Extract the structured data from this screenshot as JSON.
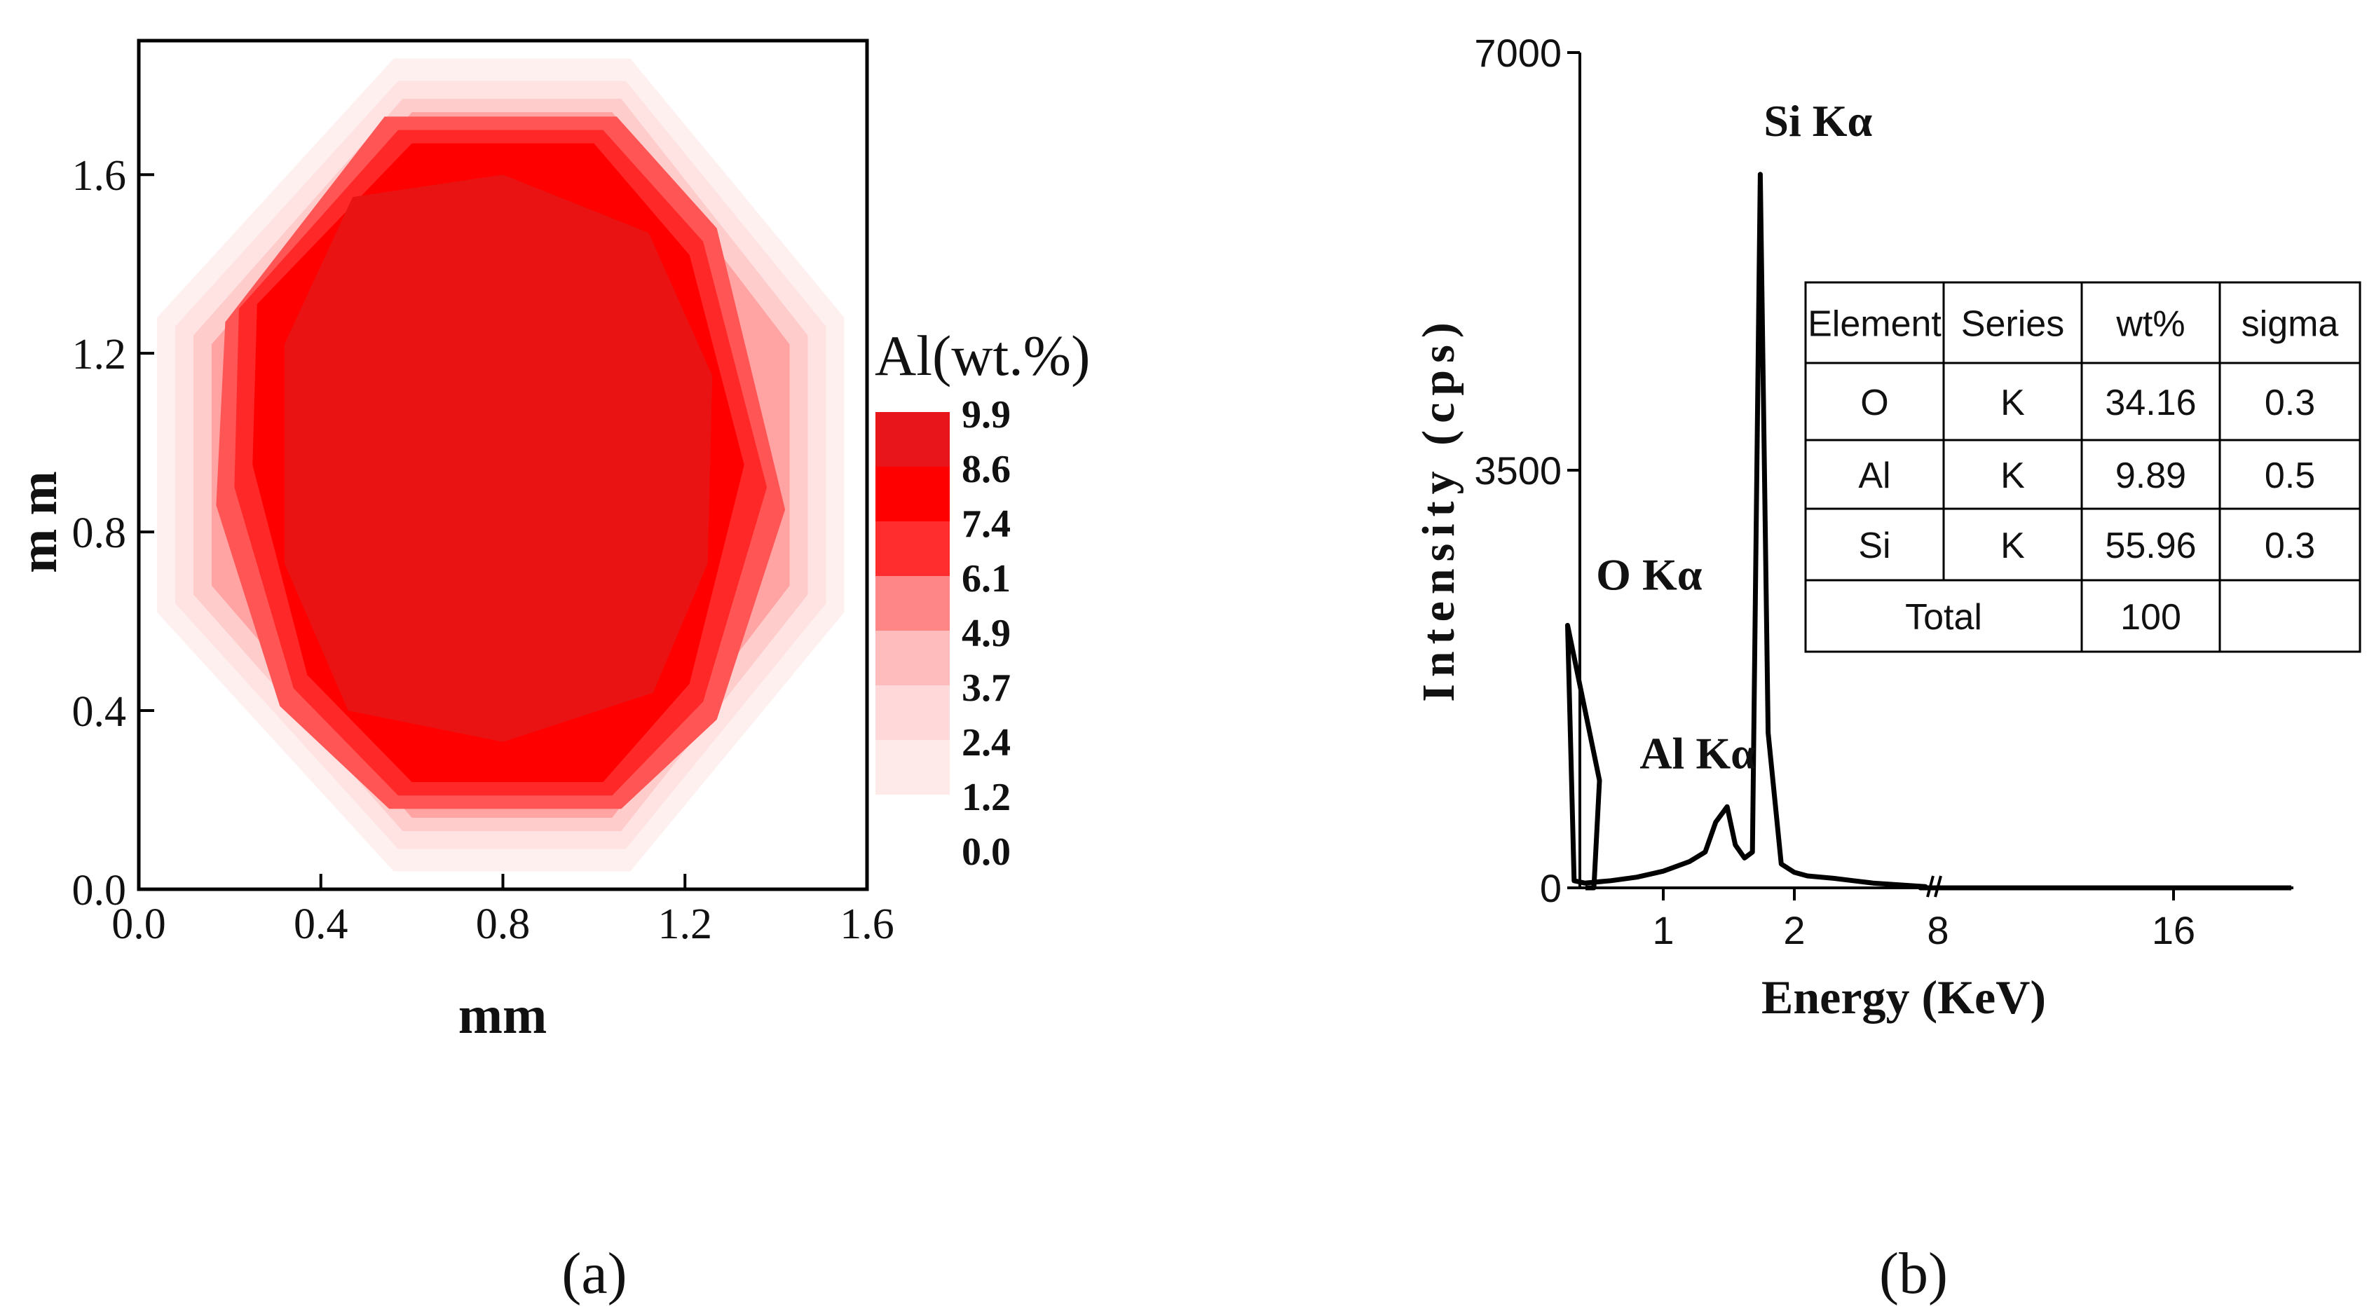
{
  "panels": {
    "a": {
      "label": "(a)"
    },
    "b": {
      "label": "(b)"
    }
  },
  "chart_data": [
    {
      "type": "heatmap",
      "title": "",
      "xlabel": "mm",
      "ylabel": "m m",
      "xlim": [
        0.0,
        1.6
      ],
      "ylim": [
        0.0,
        1.9
      ],
      "xticks": [
        "0.0",
        "0.4",
        "0.8",
        "1.2",
        "1.6"
      ],
      "yticks": [
        "0.0",
        "0.4",
        "0.8",
        "1.2",
        "1.6"
      ],
      "grid": false,
      "colorbar": {
        "title": "Al(wt.%)",
        "levels": [
          "9.9",
          "8.6",
          "7.4",
          "6.1",
          "4.9",
          "3.7",
          "2.4",
          "1.2",
          "0.0"
        ],
        "colors": [
          "#e8151a",
          "#ff0000",
          "#ff2d2d",
          "#ff8686",
          "#ffbcbc",
          "#ffd9d9",
          "#ffeaea",
          "#ffffff"
        ]
      },
      "contours": [
        {
          "level": 1.2,
          "color": "#fff0f0",
          "points": [
            [
              0.56,
              1.86
            ],
            [
              1.08,
              1.86
            ],
            [
              1.55,
              1.28
            ],
            [
              1.55,
              0.62
            ],
            [
              1.08,
              0.04
            ],
            [
              0.56,
              0.04
            ],
            [
              0.04,
              0.62
            ],
            [
              0.04,
              1.28
            ]
          ]
        },
        {
          "level": 2.4,
          "color": "#ffe3e3",
          "points": [
            [
              0.57,
              1.81
            ],
            [
              1.07,
              1.81
            ],
            [
              1.51,
              1.26
            ],
            [
              1.51,
              0.64
            ],
            [
              1.07,
              0.09
            ],
            [
              0.57,
              0.09
            ],
            [
              0.08,
              0.64
            ],
            [
              0.08,
              1.26
            ]
          ]
        },
        {
          "level": 3.7,
          "color": "#ffcccc",
          "points": [
            [
              0.58,
              1.77
            ],
            [
              1.06,
              1.77
            ],
            [
              1.47,
              1.24
            ],
            [
              1.47,
              0.66
            ],
            [
              1.06,
              0.13
            ],
            [
              0.58,
              0.13
            ],
            [
              0.12,
              0.66
            ],
            [
              0.12,
              1.24
            ]
          ]
        },
        {
          "level": 4.9,
          "color": "#ffa3a3",
          "points": [
            [
              0.6,
              1.74
            ],
            [
              1.04,
              1.74
            ],
            [
              1.43,
              1.22
            ],
            [
              1.43,
              0.68
            ],
            [
              1.04,
              0.16
            ],
            [
              0.6,
              0.16
            ],
            [
              0.16,
              0.68
            ],
            [
              0.16,
              1.22
            ]
          ]
        },
        {
          "level": 6.1,
          "color": "#ff5555",
          "points": [
            [
              0.54,
              1.73
            ],
            [
              1.05,
              1.73
            ],
            [
              1.27,
              1.48
            ],
            [
              1.42,
              0.85
            ],
            [
              1.27,
              0.38
            ],
            [
              1.06,
              0.18
            ],
            [
              0.55,
              0.18
            ],
            [
              0.31,
              0.41
            ],
            [
              0.17,
              0.86
            ],
            [
              0.19,
              1.27
            ]
          ]
        },
        {
          "level": 7.4,
          "color": "#ff2828",
          "points": [
            [
              0.57,
              1.7
            ],
            [
              1.02,
              1.7
            ],
            [
              1.24,
              1.45
            ],
            [
              1.38,
              0.9
            ],
            [
              1.24,
              0.42
            ],
            [
              1.04,
              0.21
            ],
            [
              0.57,
              0.21
            ],
            [
              0.34,
              0.45
            ],
            [
              0.21,
              0.9
            ],
            [
              0.22,
              1.3
            ]
          ]
        },
        {
          "level": 8.6,
          "color": "#ff0000",
          "points": [
            [
              0.6,
              1.67
            ],
            [
              1,
              1.67
            ],
            [
              1.21,
              1.42
            ],
            [
              1.33,
              0.95
            ],
            [
              1.21,
              0.46
            ],
            [
              1.02,
              0.24
            ],
            [
              0.6,
              0.24
            ],
            [
              0.37,
              0.48
            ],
            [
              0.25,
              0.95
            ],
            [
              0.26,
              1.31
            ]
          ]
        },
        {
          "level": 9.9,
          "color": "#ea1313",
          "points": [
            [
              0.47,
              1.55
            ],
            [
              0.8,
              1.6
            ],
            [
              1.12,
              1.47
            ],
            [
              1.26,
              1.15
            ],
            [
              1.25,
              0.73
            ],
            [
              1.13,
              0.44
            ],
            [
              0.8,
              0.33
            ],
            [
              0.46,
              0.4
            ],
            [
              0.32,
              0.73
            ],
            [
              0.32,
              1.22
            ]
          ]
        }
      ]
    },
    {
      "type": "line",
      "title": "",
      "xlabel": "Energy (KeV)",
      "ylabel": "Intensity (cps)",
      "ylim": [
        0,
        7000
      ],
      "yticks": [
        "0",
        "3500",
        "7000"
      ],
      "xticks": [
        "1",
        "2",
        "8",
        "16"
      ],
      "x_axis_break": "//",
      "grid": false,
      "series": [
        {
          "name": "",
          "color": "#000000",
          "points": [
            [
              0.27,
              2200
            ],
            [
              0.32,
              60
            ],
            [
              0.4,
              40
            ],
            [
              0.6,
              60
            ],
            [
              0.8,
              90
            ],
            [
              1.0,
              140
            ],
            [
              1.2,
              220
            ],
            [
              1.32,
              300
            ],
            [
              1.4,
              550
            ],
            [
              1.487,
              680
            ],
            [
              1.55,
              360
            ],
            [
              1.62,
              250
            ],
            [
              1.68,
              300
            ],
            [
              1.74,
              5980
            ],
            [
              1.8,
              1300
            ],
            [
              1.9,
              200
            ],
            [
              2.0,
              130
            ],
            [
              2.1,
              100
            ],
            [
              2.3,
              80
            ],
            [
              2.45,
              60
            ],
            [
              2.6,
              40
            ],
            [
              2.8,
              25
            ],
            [
              3.0,
              10
            ],
            [
              3.2,
              0
            ],
            [
              8,
              0
            ],
            [
              12,
              0
            ],
            [
              16,
              0
            ],
            [
              20,
              0
            ]
          ]
        }
      ],
      "annotations": [
        {
          "text": "O Kα",
          "x": 0.525,
          "y": 2500
        },
        {
          "text": "Al Kα",
          "x": 1.487,
          "y": 1000
        },
        {
          "text": "Si Kα",
          "x": 1.74,
          "y": 6300
        }
      ],
      "table": {
        "headers": [
          "Element",
          "Series",
          "wt%",
          "sigma"
        ],
        "rows": [
          [
            "O",
            "K",
            "34.16",
            "0.3"
          ],
          [
            "Al",
            "K",
            "9.89",
            "0.5"
          ],
          [
            "Si",
            "K",
            "55.96",
            "0.3"
          ]
        ],
        "total_label": "Total",
        "total_value": "100"
      }
    }
  ]
}
